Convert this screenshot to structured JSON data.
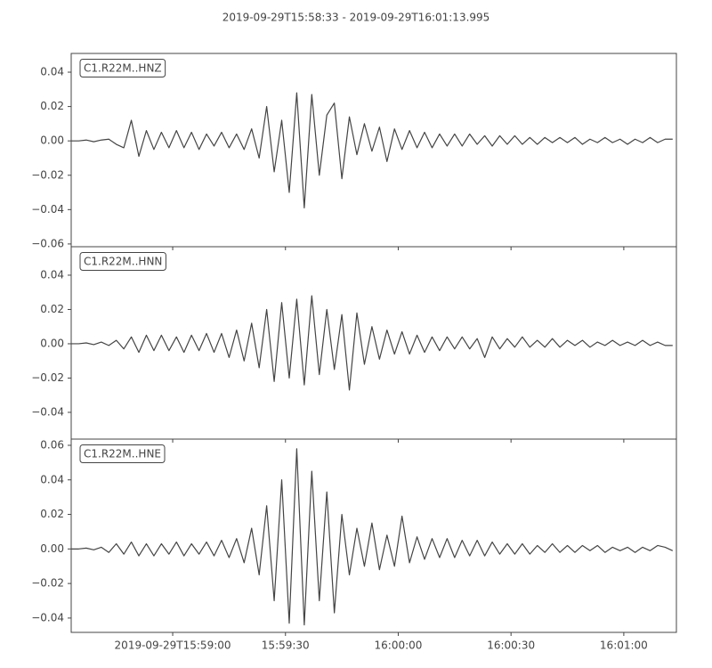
{
  "title": "2019-09-29T15:58:33  -  2019-09-29T16:01:13.995",
  "chart_data": [
    {
      "type": "line",
      "name": "C1.R22M..HNZ",
      "color": "#444444",
      "xlim": [
        0,
        160.995
      ],
      "ylim": [
        -0.0616,
        0.0509
      ],
      "yticks": [
        {
          "value": 0.04,
          "label": "0.04"
        },
        {
          "value": 0.02,
          "label": "0.02"
        },
        {
          "value": 0,
          "label": "0.00"
        },
        {
          "value": -0.02,
          "label": "−0.02"
        },
        {
          "value": -0.04,
          "label": "−0.04"
        },
        {
          "value": -0.06,
          "label": "−0.06"
        }
      ],
      "x": [
        0,
        2,
        4,
        6,
        8,
        10,
        12,
        14,
        16,
        18,
        20,
        22,
        24,
        26,
        28,
        30,
        32,
        34,
        36,
        38,
        40,
        42,
        44,
        46,
        48,
        50,
        52,
        54,
        56,
        58,
        60,
        62,
        64,
        66,
        68,
        70,
        72,
        74,
        76,
        78,
        80,
        82,
        84,
        86,
        88,
        90,
        92,
        94,
        96,
        98,
        100,
        102,
        104,
        106,
        108,
        110,
        112,
        114,
        116,
        118,
        120,
        122,
        124,
        126,
        128,
        130,
        132,
        134,
        136,
        138,
        140,
        142,
        144,
        146,
        148,
        150,
        152,
        154,
        156,
        158,
        160
      ],
      "values": [
        0,
        0,
        0.0005,
        -0.0005,
        0.0005,
        0.001,
        -0.002,
        -0.004,
        0.012,
        -0.009,
        0.006,
        -0.005,
        0.005,
        -0.004,
        0.006,
        -0.004,
        0.005,
        -0.005,
        0.004,
        -0.003,
        0.005,
        -0.004,
        0.004,
        -0.005,
        0.007,
        -0.01,
        0.02,
        -0.018,
        0.012,
        -0.03,
        0.028,
        -0.039,
        0.027,
        -0.02,
        0.015,
        0.022,
        -0.022,
        0.014,
        -0.008,
        0.01,
        -0.006,
        0.008,
        -0.012,
        0.007,
        -0.005,
        0.006,
        -0.004,
        0.005,
        -0.004,
        0.004,
        -0.003,
        0.004,
        -0.003,
        0.004,
        -0.002,
        0.003,
        -0.003,
        0.003,
        -0.002,
        0.003,
        -0.002,
        0.002,
        -0.002,
        0.002,
        -0.001,
        0.002,
        -0.001,
        0.002,
        -0.002,
        0.001,
        -0.001,
        0.002,
        -0.001,
        0.001,
        -0.002,
        0.001,
        -0.001,
        0.002,
        -0.001,
        0.001,
        0.001
      ]
    },
    {
      "type": "line",
      "name": "C1.R22M..HNN",
      "color": "#444444",
      "xlim": [
        0,
        160.995
      ],
      "ylim": [
        -0.0556,
        0.0566
      ],
      "yticks": [
        {
          "value": 0.04,
          "label": "0.04"
        },
        {
          "value": 0.02,
          "label": "0.02"
        },
        {
          "value": 0,
          "label": "0.00"
        },
        {
          "value": -0.02,
          "label": "−0.02"
        },
        {
          "value": -0.04,
          "label": "−0.04"
        }
      ],
      "x": [
        0,
        2,
        4,
        6,
        8,
        10,
        12,
        14,
        16,
        18,
        20,
        22,
        24,
        26,
        28,
        30,
        32,
        34,
        36,
        38,
        40,
        42,
        44,
        46,
        48,
        50,
        52,
        54,
        56,
        58,
        60,
        62,
        64,
        66,
        68,
        70,
        72,
        74,
        76,
        78,
        80,
        82,
        84,
        86,
        88,
        90,
        92,
        94,
        96,
        98,
        100,
        102,
        104,
        106,
        108,
        110,
        112,
        114,
        116,
        118,
        120,
        122,
        124,
        126,
        128,
        130,
        132,
        134,
        136,
        138,
        140,
        142,
        144,
        146,
        148,
        150,
        152,
        154,
        156,
        158,
        160
      ],
      "values": [
        0,
        0,
        0.0005,
        -0.0005,
        0.001,
        -0.001,
        0.002,
        -0.003,
        0.004,
        -0.005,
        0.005,
        -0.004,
        0.005,
        -0.004,
        0.004,
        -0.005,
        0.005,
        -0.004,
        0.006,
        -0.005,
        0.006,
        -0.008,
        0.008,
        -0.01,
        0.012,
        -0.014,
        0.02,
        -0.022,
        0.024,
        -0.02,
        0.026,
        -0.024,
        0.028,
        -0.018,
        0.02,
        -0.015,
        0.017,
        -0.027,
        0.018,
        -0.012,
        0.01,
        -0.009,
        0.008,
        -0.006,
        0.007,
        -0.006,
        0.005,
        -0.005,
        0.004,
        -0.004,
        0.004,
        -0.003,
        0.004,
        -0.003,
        0.003,
        -0.008,
        0.004,
        -0.003,
        0.003,
        -0.002,
        0.004,
        -0.002,
        0.002,
        -0.002,
        0.003,
        -0.002,
        0.002,
        -0.001,
        0.002,
        -0.002,
        0.001,
        -0.001,
        0.002,
        -0.001,
        0.001,
        -0.001,
        0.002,
        -0.001,
        0.001,
        -0.001,
        -0.001
      ]
    },
    {
      "type": "line",
      "name": "C1.R22M..HNE",
      "color": "#444444",
      "xlim": [
        0,
        160.995
      ],
      "ylim": [
        -0.0483,
        0.0636
      ],
      "yticks": [
        {
          "value": 0.06,
          "label": "0.06"
        },
        {
          "value": 0.04,
          "label": "0.04"
        },
        {
          "value": 0.02,
          "label": "0.02"
        },
        {
          "value": 0,
          "label": "0.00"
        },
        {
          "value": -0.02,
          "label": "−0.02"
        },
        {
          "value": -0.04,
          "label": "−0.04"
        }
      ],
      "xticks": [
        {
          "value": 27,
          "label": "2019-09-29T15:59:00"
        },
        {
          "value": 57,
          "label": "15:59:30"
        },
        {
          "value": 87,
          "label": "16:00:00"
        },
        {
          "value": 117,
          "label": "16:00:30"
        },
        {
          "value": 147,
          "label": "16:01:00"
        }
      ],
      "x": [
        0,
        2,
        4,
        6,
        8,
        10,
        12,
        14,
        16,
        18,
        20,
        22,
        24,
        26,
        28,
        30,
        32,
        34,
        36,
        38,
        40,
        42,
        44,
        46,
        48,
        50,
        52,
        54,
        56,
        58,
        60,
        62,
        64,
        66,
        68,
        70,
        72,
        74,
        76,
        78,
        80,
        82,
        84,
        86,
        88,
        90,
        92,
        94,
        96,
        98,
        100,
        102,
        104,
        106,
        108,
        110,
        112,
        114,
        116,
        118,
        120,
        122,
        124,
        126,
        128,
        130,
        132,
        134,
        136,
        138,
        140,
        142,
        144,
        146,
        148,
        150,
        152,
        154,
        156,
        158,
        160
      ],
      "values": [
        0,
        0,
        0.0005,
        -0.0005,
        0.001,
        -0.002,
        0.003,
        -0.003,
        0.004,
        -0.004,
        0.003,
        -0.004,
        0.003,
        -0.003,
        0.004,
        -0.004,
        0.003,
        -0.003,
        0.004,
        -0.004,
        0.005,
        -0.005,
        0.006,
        -0.008,
        0.012,
        -0.015,
        0.025,
        -0.03,
        0.04,
        -0.043,
        0.058,
        -0.044,
        0.045,
        -0.03,
        0.033,
        -0.037,
        0.02,
        -0.015,
        0.012,
        -0.01,
        0.015,
        -0.012,
        0.008,
        -0.01,
        0.019,
        -0.008,
        0.007,
        -0.006,
        0.006,
        -0.005,
        0.006,
        -0.005,
        0.005,
        -0.004,
        0.005,
        -0.004,
        0.004,
        -0.003,
        0.003,
        -0.003,
        0.003,
        -0.003,
        0.002,
        -0.002,
        0.003,
        -0.002,
        0.002,
        -0.002,
        0.002,
        -0.001,
        0.002,
        -0.002,
        0.001,
        -0.001,
        0.001,
        -0.002,
        0.001,
        -0.001,
        0.002,
        0.001,
        -0.001
      ]
    }
  ]
}
